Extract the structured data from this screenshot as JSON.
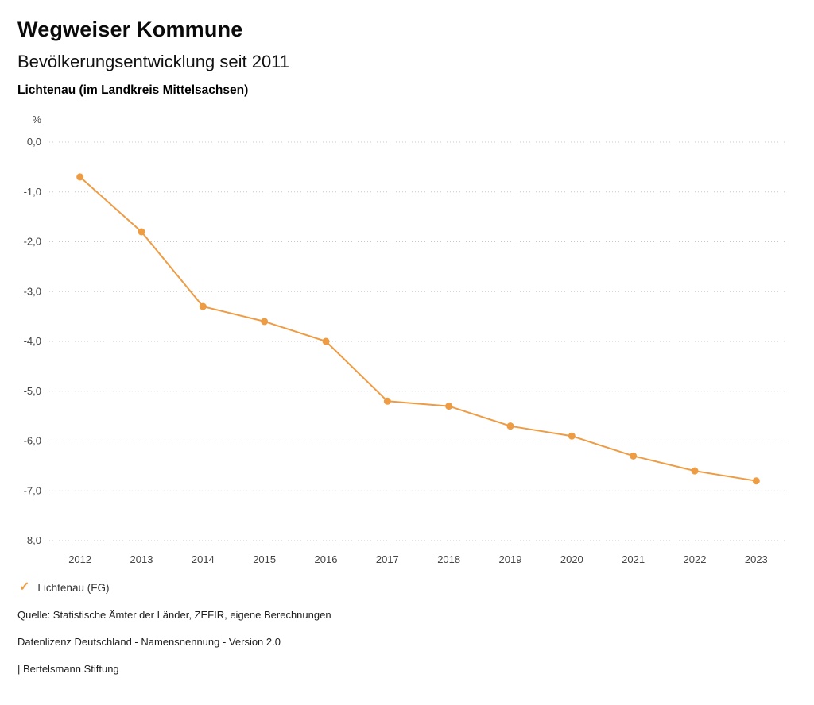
{
  "header": {
    "title": "Wegweiser Kommune",
    "subtitle": "Bevölkerungsentwicklung seit 2011",
    "location": "Lichtenau (im Landkreis Mittelsachsen)"
  },
  "legend": {
    "check_icon": "✓",
    "label": "Lichtenau (FG)",
    "color": "#EE9C44"
  },
  "footer": {
    "source": "Quelle: Statistische Ämter der Länder, ZEFIR, eigene Berechnungen",
    "license": "Datenlizenz Deutschland - Namensnennung - Version 2.0",
    "attribution": "| Bertelsmann Stiftung"
  },
  "chart_data": {
    "type": "line",
    "title": "Bevölkerungsentwicklung seit 2011",
    "subtitle": "Lichtenau (im Landkreis Mittelsachsen)",
    "categories": [
      "2012",
      "2013",
      "2014",
      "2015",
      "2016",
      "2017",
      "2018",
      "2019",
      "2020",
      "2021",
      "2022",
      "2023"
    ],
    "series": [
      {
        "name": "Lichtenau (FG)",
        "values": [
          -0.7,
          -1.8,
          -3.3,
          -3.6,
          -4.0,
          -5.2,
          -5.3,
          -5.7,
          -5.9,
          -6.3,
          -6.6,
          -6.8
        ],
        "color": "#EE9C44"
      }
    ],
    "xlabel": "",
    "ylabel_unit": "%",
    "ylim": [
      -8.0,
      0.0
    ],
    "y_ticks": [
      0,
      -1,
      -2,
      -3,
      -4,
      -5,
      -6,
      -7,
      -8
    ],
    "y_tick_labels": [
      "0,0",
      "-1,0",
      "-2,0",
      "-3,0",
      "-4,0",
      "-5,0",
      "-6,0",
      "-7,0",
      "-8,0"
    ],
    "grid": "dotted-horizontal",
    "legend_position": "bottom-left",
    "marker": "circle"
  }
}
